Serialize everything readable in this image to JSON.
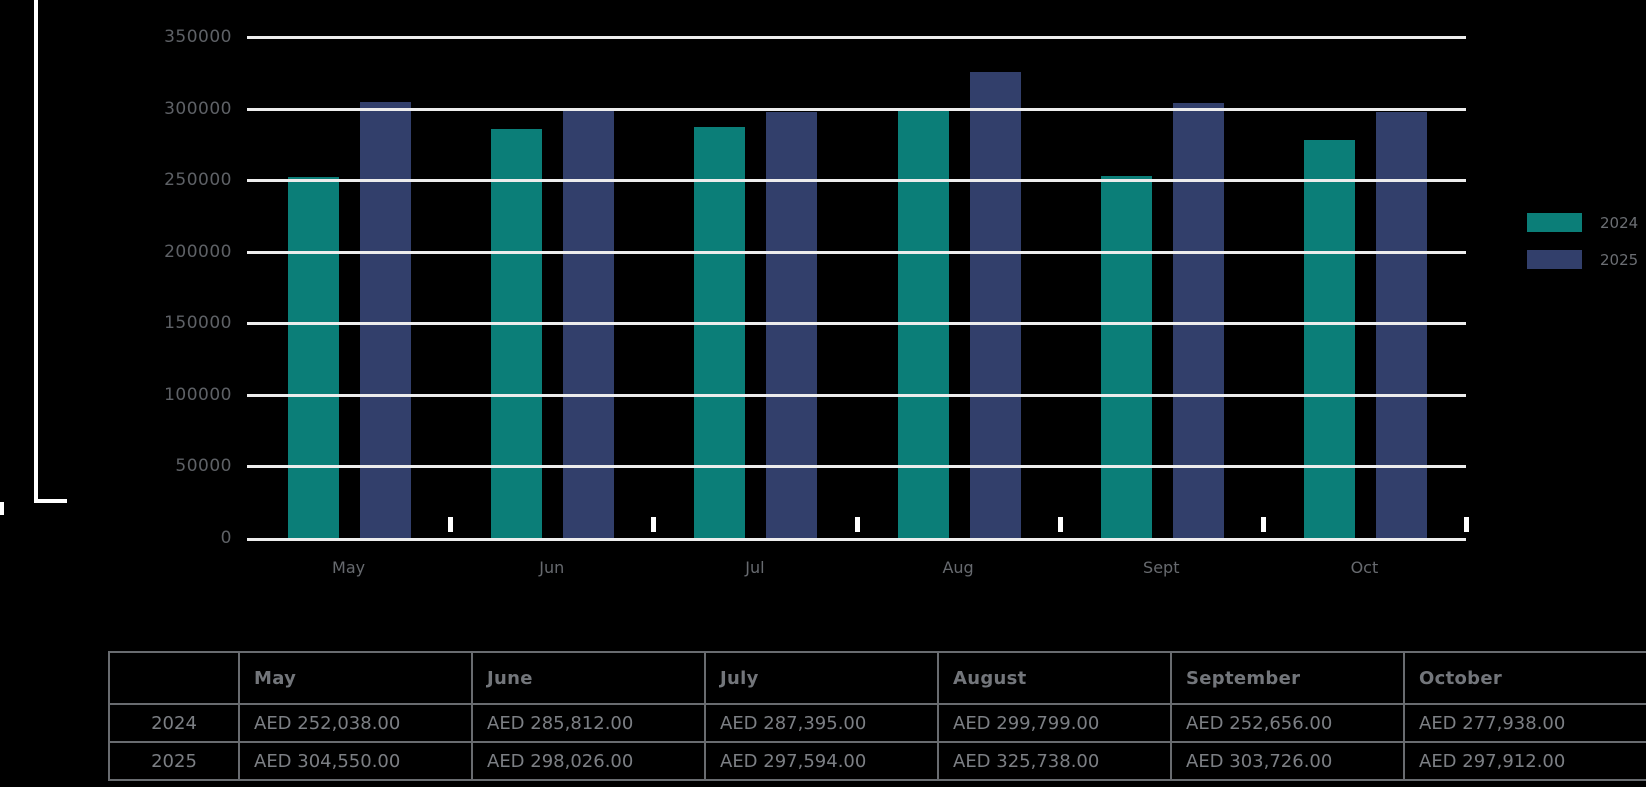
{
  "colors": {
    "background": "#000000",
    "gridline": "#EDEDED",
    "series_2024": "#0B7E78",
    "series_2025": "#323F6B",
    "axis_text": "#5E6166",
    "table_text": "#7C7F84",
    "table_border": "#696C70"
  },
  "chart_data": {
    "type": "bar",
    "categories": [
      "May",
      "Jun",
      "Jul",
      "Aug",
      "Sept",
      "Oct"
    ],
    "series": [
      {
        "name": "2024",
        "color": "#0B7E78",
        "values": [
          252038,
          285812,
          287395,
          299799,
          252656,
          277938
        ]
      },
      {
        "name": "2025",
        "color": "#323F6B",
        "values": [
          304550,
          298026,
          297594,
          325738,
          303726,
          297912
        ]
      }
    ],
    "title": "",
    "xlabel": "",
    "ylabel": "",
    "ylim": [
      0,
      350000
    ],
    "ytick_step": 50000,
    "ytick_labels": [
      "0",
      "50000",
      "100000",
      "150000",
      "200000",
      "250000",
      "300000",
      "350000"
    ],
    "grid": true,
    "legend_position": "right"
  },
  "legend": {
    "items": [
      {
        "label": "2024",
        "color": "#0B7E78"
      },
      {
        "label": "2025",
        "color": "#323F6B"
      }
    ]
  },
  "table": {
    "headers": [
      "",
      "May",
      "June",
      "July",
      "August",
      "September",
      "October"
    ],
    "rows": [
      {
        "label": "2024",
        "values": [
          "AED 252,038.00",
          "AED 285,812.00",
          "AED 287,395.00",
          "AED 299,799.00",
          "AED 252,656.00",
          "AED 277,938.00"
        ]
      },
      {
        "label": "2025",
        "values": [
          "AED 304,550.00",
          "AED 298,026.00",
          "AED 297,594.00",
          "AED 325,738.00",
          "AED 303,726.00",
          "AED 297,912.00"
        ]
      }
    ]
  }
}
